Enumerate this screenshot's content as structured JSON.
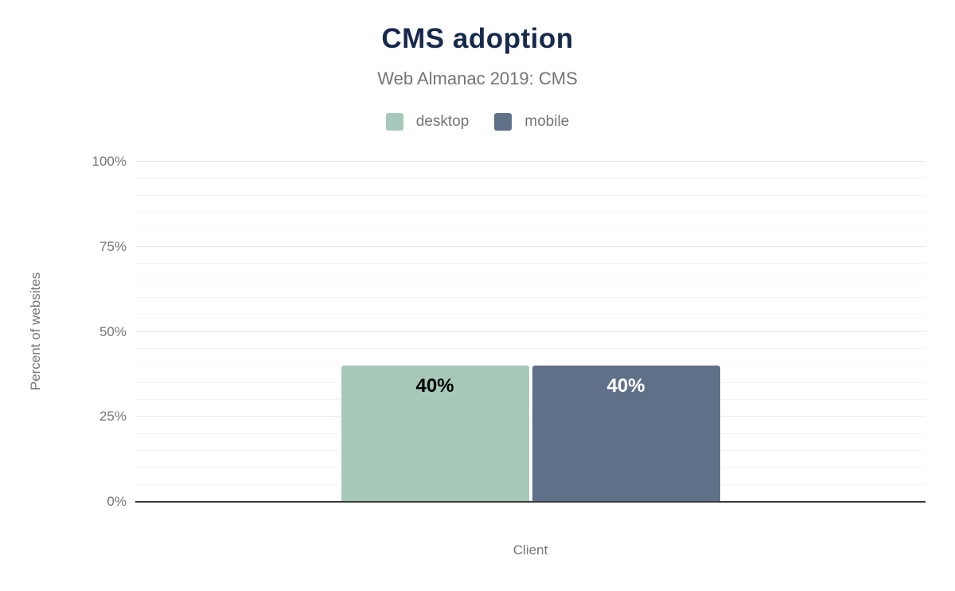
{
  "chart_data": {
    "type": "bar",
    "title": "CMS adoption",
    "subtitle": "Web Almanac 2019: CMS",
    "xlabel": "Client",
    "ylabel": "Percent of websites",
    "ylim": [
      0,
      100
    ],
    "ytick_step": 25,
    "minor_step": 5,
    "ytick_suffix": "%",
    "grid": true,
    "legend_position": "top",
    "categories": [
      "Client"
    ],
    "series": [
      {
        "name": "desktop",
        "value": 40,
        "label": "40%",
        "color": "#a6c8b8",
        "label_color": "#000000"
      },
      {
        "name": "mobile",
        "value": 40,
        "label": "40%",
        "color": "#5f7089",
        "label_color": "#ffffff"
      }
    ]
  },
  "colors": {
    "background": "#ffffff",
    "title": "#172a4d",
    "subtitle": "#757575",
    "axis_text": "#757575",
    "axis_line": "#38383d",
    "grid_major": "#e7e7e7",
    "grid_minor": "#f4f4f4"
  }
}
